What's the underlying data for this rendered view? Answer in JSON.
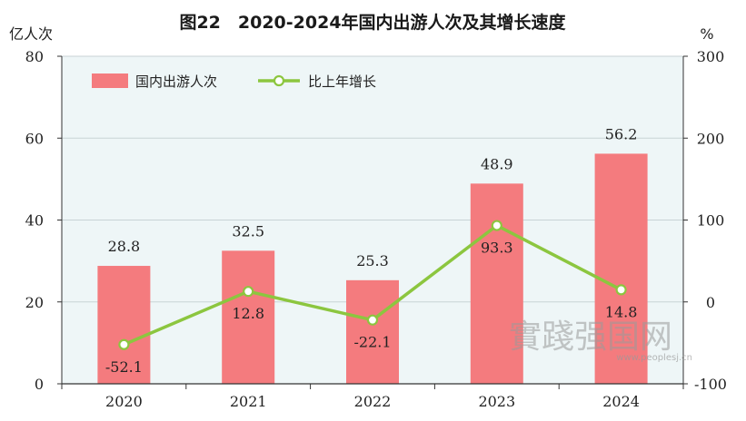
{
  "chart_data": {
    "type": "bar",
    "title": "图22　2020-2024年国内出游人次及其增长速度",
    "categories": [
      "2020",
      "2021",
      "2022",
      "2023",
      "2024"
    ],
    "series": [
      {
        "name": "国内出游人次",
        "type": "bar",
        "axis": "left",
        "color": "#f47b7e",
        "values": [
          28.8,
          32.5,
          25.3,
          48.9,
          56.2
        ],
        "labels": [
          "28.8",
          "32.5",
          "25.3",
          "48.9",
          "56.2"
        ]
      },
      {
        "name": "比上年增长",
        "type": "line",
        "axis": "right",
        "color": "#8cc63f",
        "values": [
          -52.1,
          12.8,
          -22.1,
          93.3,
          14.8
        ],
        "labels": [
          "-52.1",
          "12.8",
          "-22.1",
          "93.3",
          "14.8"
        ]
      }
    ],
    "ylabel_left": "亿人次",
    "ylabel_right": "%",
    "ylim_left": [
      0,
      80
    ],
    "yticks_left": [
      "0",
      "20",
      "40",
      "60",
      "80"
    ],
    "ylim_right": [
      -100,
      300
    ],
    "yticks_right": [
      "-100",
      "0",
      "100",
      "200",
      "300"
    ],
    "legend_position": "top-left",
    "plot_background": "#eef6f7",
    "watermark": {
      "text": "實踐强国网",
      "url": "www.peoplesj.cn"
    }
  }
}
